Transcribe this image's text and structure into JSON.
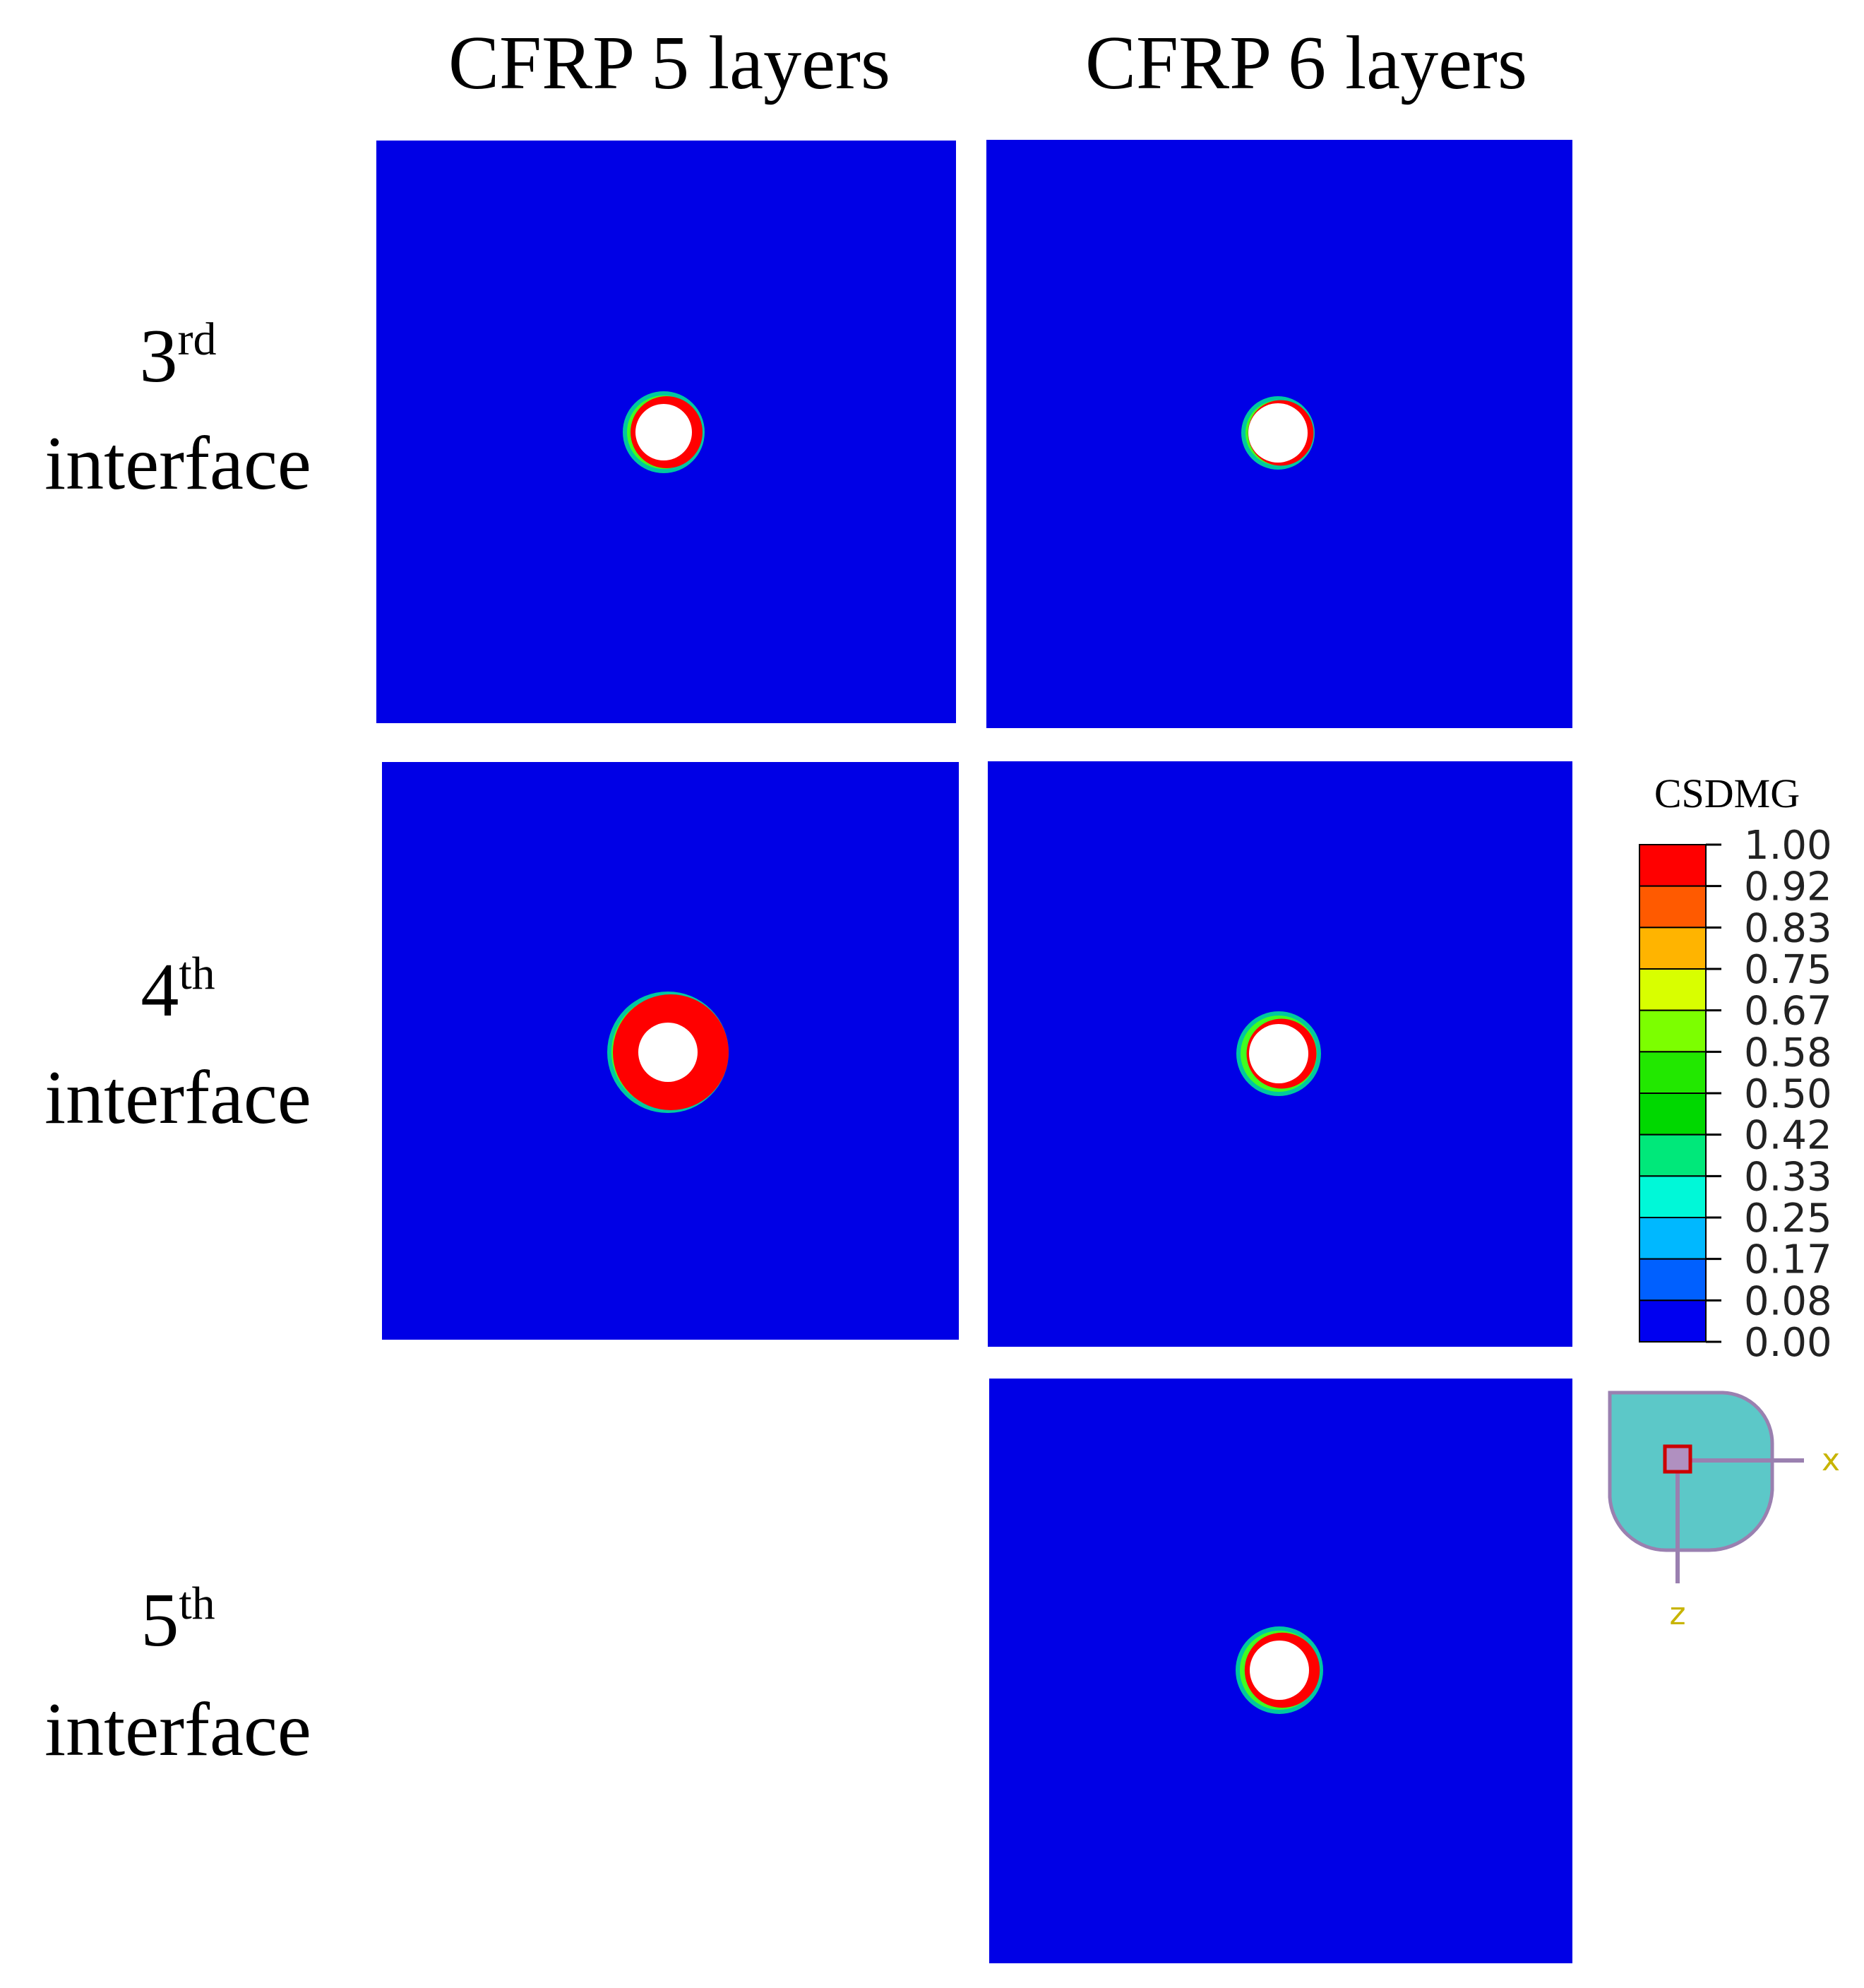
{
  "columns": [
    "CFRP 5 layers",
    "CFRP 6 layers"
  ],
  "rows": [
    {
      "number": "3",
      "suffix": "rd",
      "word": "interface"
    },
    {
      "number": "4",
      "suffix": "th",
      "word": "interface"
    },
    {
      "number": "5",
      "suffix": "th",
      "word": "interface"
    }
  ],
  "legend": {
    "title": "CSDMG",
    "labels": [
      "1.00",
      "0.92",
      "0.83",
      "0.75",
      "0.67",
      "0.58",
      "0.50",
      "0.42",
      "0.33",
      "0.25",
      "0.17",
      "0.08",
      "0.00"
    ]
  },
  "triad": {
    "x": "x",
    "z": "z"
  }
}
